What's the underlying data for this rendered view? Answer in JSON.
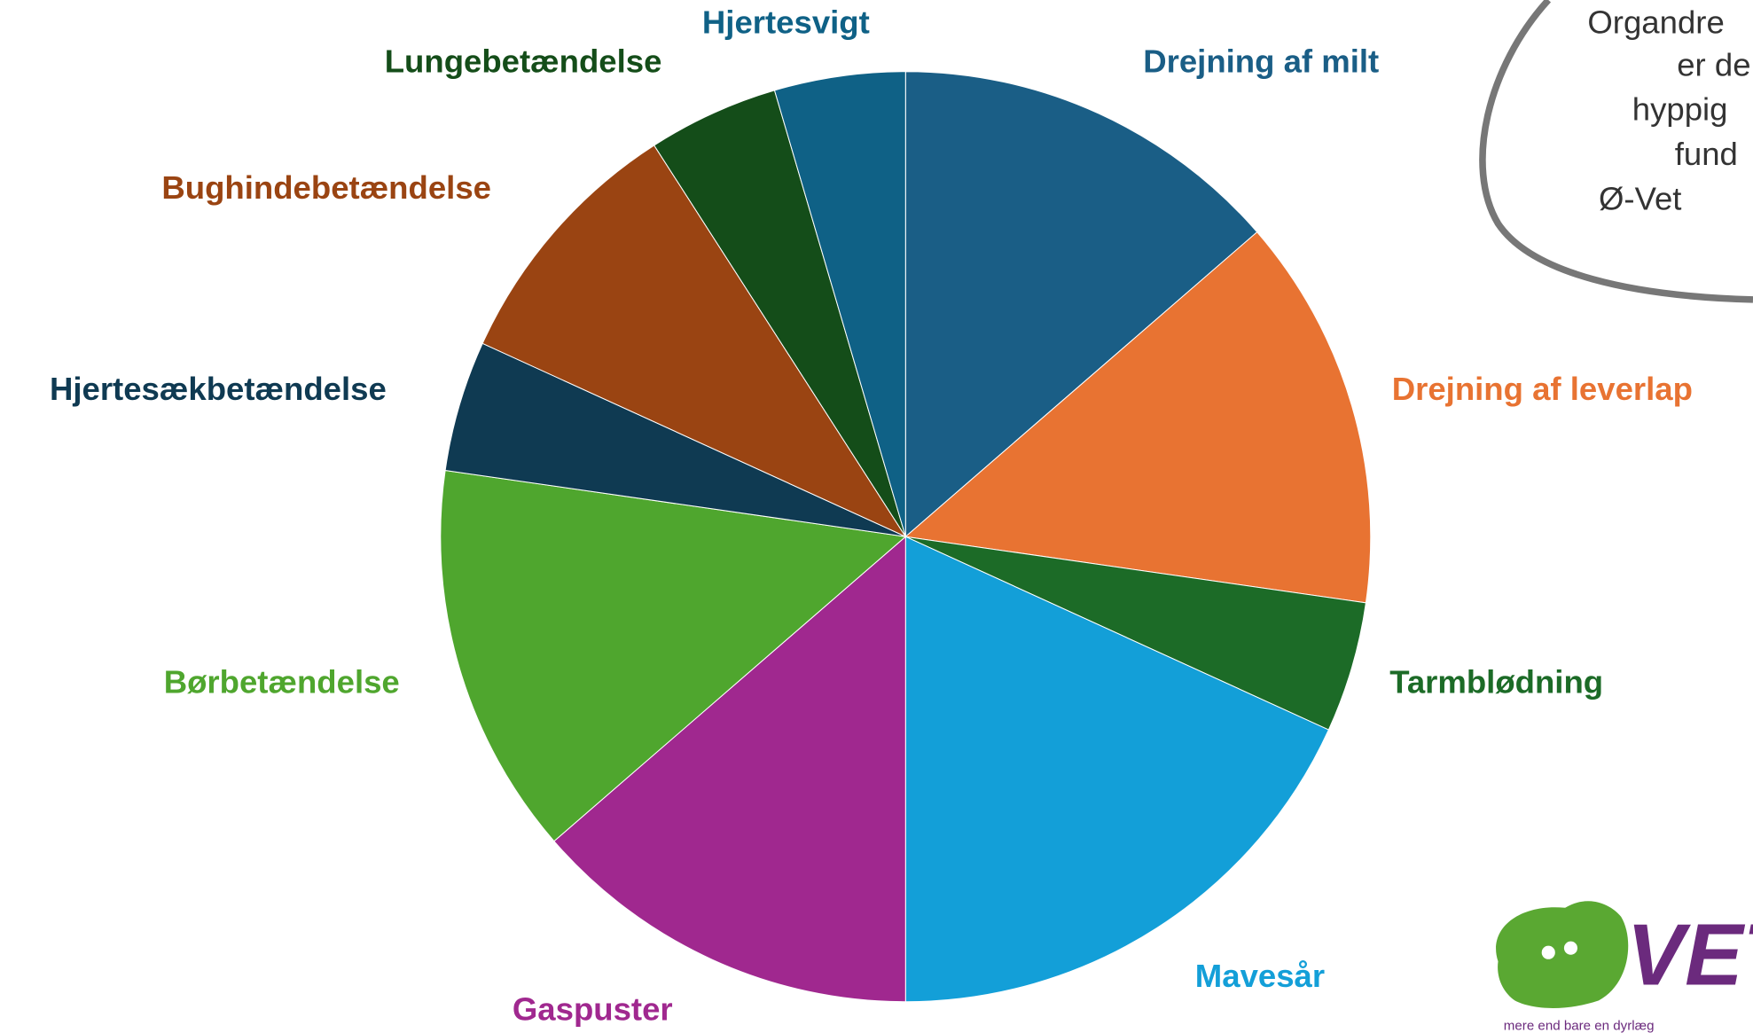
{
  "chart_data": {
    "type": "pie",
    "categories": [
      "Drejning af milt",
      "Drejning af leverlap",
      "Tarmblødning",
      "Mavesår",
      "Gaspuster",
      "Børbetændelse",
      "Hjertesækbetændelse",
      "Bughindebetændelse",
      "Lungebetændelse",
      "Hjertesvigt"
    ],
    "values": [
      3,
      3,
      1,
      4,
      3,
      3,
      1,
      2,
      1,
      1
    ],
    "colors": [
      "#1a5e86",
      "#e87332",
      "#1c6b27",
      "#139fd8",
      "#a0288f",
      "#4fa62e",
      "#0f3a52",
      "#9a4412",
      "#144d19",
      "#0f6186"
    ]
  },
  "annotation": {
    "lines": [
      "Organdre",
      "er de",
      "hyppig",
      "fund",
      "Ø-Vet"
    ]
  },
  "logo": {
    "text": "VET",
    "tagline": "mere end bare en dyrlæg"
  }
}
